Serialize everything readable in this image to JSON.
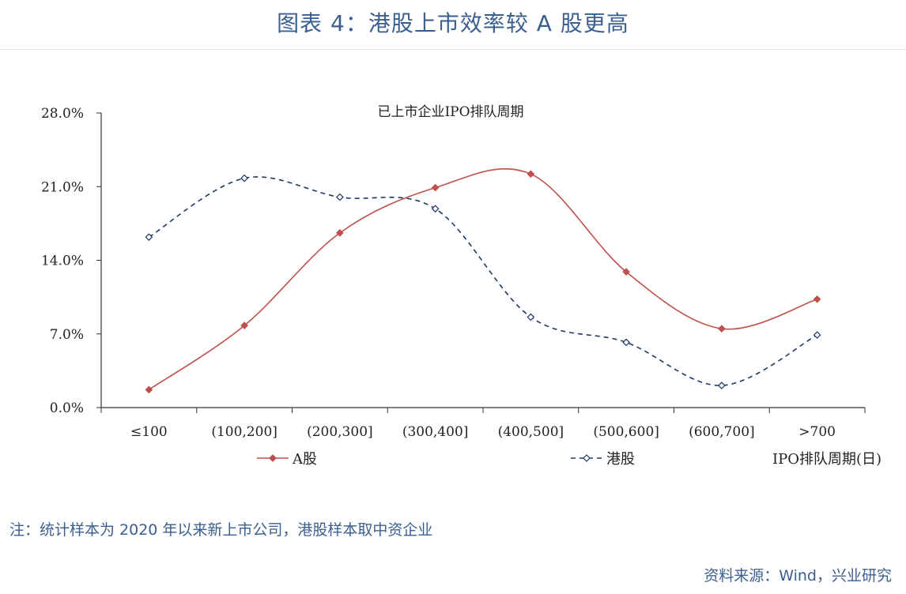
{
  "figure": {
    "title": "图表 4：港股上市效率较 A 股更高",
    "note": "注：统计样本为 2020 年以来新上市公司，港股样本取中资企业",
    "source": "资料来源：Wind，兴业研究"
  },
  "chart_data": {
    "type": "line",
    "title": "已上市企业IPO排队周期",
    "xlabel": "IPO排队周期(日)",
    "ylabel": "",
    "categories": [
      "≤100",
      "(100,200]",
      "(200,300]",
      "(300,400]",
      "(400,500]",
      "(500,600]",
      "(600,700]",
      ">700"
    ],
    "yticks": [
      "0.0%",
      "7.0%",
      "14.0%",
      "21.0%",
      "28.0%"
    ],
    "ylim": [
      0,
      28
    ],
    "grid": false,
    "legend_position": "bottom",
    "series": [
      {
        "name": "A股",
        "color": "#c0504d",
        "style": "solid",
        "values": [
          1.7,
          7.8,
          16.6,
          20.9,
          22.2,
          12.9,
          7.5,
          10.3
        ]
      },
      {
        "name": "港股",
        "color": "#1f3864",
        "style": "dashed",
        "values": [
          16.2,
          21.8,
          20.0,
          18.9,
          8.6,
          6.2,
          2.1,
          6.9
        ]
      }
    ]
  }
}
